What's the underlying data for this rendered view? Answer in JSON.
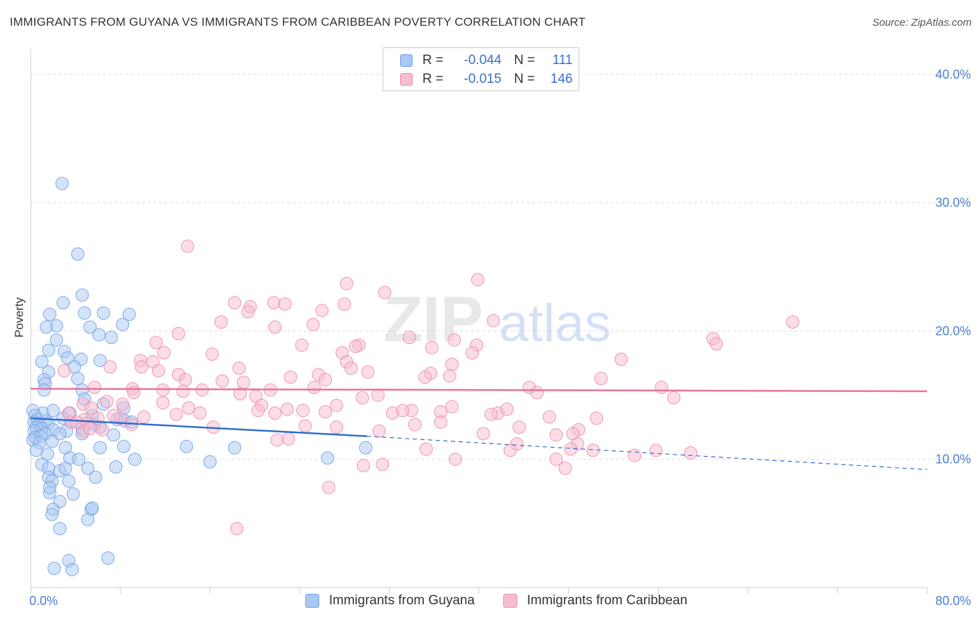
{
  "header": {
    "title": "IMMIGRANTS FROM GUYANA VS IMMIGRANTS FROM CARIBBEAN POVERTY CORRELATION CHART",
    "source": "Source: ZipAtlas.com"
  },
  "colors": {
    "guyana": "#6fa2e8",
    "guyana_fill": "#a9c8f2",
    "guyana_line": "#2f6fcc",
    "caribbean": "#ef8cab",
    "caribbean_fill": "#f6bccf",
    "caribbean_line": "#e8739b",
    "tick_text": "#4a7fd4"
  },
  "legend": {
    "r_label": "R =",
    "n_label": "N =",
    "rows": [
      {
        "r": "-0.044",
        "n": "111"
      },
      {
        "r": "-0.015",
        "n": "146"
      }
    ]
  },
  "watermark": {
    "part1": "ZIP",
    "part2": "atlas"
  },
  "chart_data": {
    "type": "scatter",
    "xlabel": "",
    "ylabel": "Poverty",
    "xlim": [
      0,
      80
    ],
    "ylim": [
      0,
      42
    ],
    "x_tick_labels": [
      "0.0%",
      "80.0%"
    ],
    "y_ticks": [
      10,
      20,
      30,
      40
    ],
    "y_tick_labels": [
      "10.0%",
      "20.0%",
      "30.0%",
      "40.0%"
    ],
    "grid": true,
    "legend_position": "top-center",
    "series": [
      {
        "name": "Immigrants from Guyana",
        "trend": {
          "x0": 0,
          "y0": 13.2,
          "x1": 30,
          "y1": 11.8,
          "x_end": 80,
          "y_end": 9.2
        },
        "points": [
          [
            2.8,
            31.5
          ],
          [
            4.2,
            26.0
          ],
          [
            4.6,
            22.8
          ],
          [
            2.9,
            22.2
          ],
          [
            4.8,
            21.4
          ],
          [
            6.5,
            21.4
          ],
          [
            8.8,
            21.3
          ],
          [
            1.7,
            21.3
          ],
          [
            2.3,
            20.4
          ],
          [
            1.4,
            20.3
          ],
          [
            5.3,
            20.3
          ],
          [
            8.2,
            20.5
          ],
          [
            6.1,
            19.7
          ],
          [
            7.2,
            19.5
          ],
          [
            2.3,
            19.3
          ],
          [
            1.6,
            18.5
          ],
          [
            3.0,
            18.4
          ],
          [
            3.3,
            17.9
          ],
          [
            4.5,
            17.8
          ],
          [
            6.2,
            17.7
          ],
          [
            1.0,
            17.6
          ],
          [
            3.9,
            17.2
          ],
          [
            1.6,
            16.8
          ],
          [
            1.2,
            16.2
          ],
          [
            1.3,
            15.9
          ],
          [
            4.2,
            16.3
          ],
          [
            1.2,
            15.4
          ],
          [
            4.6,
            15.4
          ],
          [
            4.8,
            14.7
          ],
          [
            6.5,
            14.3
          ],
          [
            8.3,
            14.0
          ],
          [
            0.2,
            13.8
          ],
          [
            1.1,
            13.6
          ],
          [
            2.0,
            13.8
          ],
          [
            3.5,
            13.6
          ],
          [
            5.5,
            13.4
          ],
          [
            0.4,
            13.4
          ],
          [
            0.6,
            13.1
          ],
          [
            1.4,
            13.0
          ],
          [
            2.9,
            13.2
          ],
          [
            8.4,
            13.0
          ],
          [
            7.7,
            13.1
          ],
          [
            0.3,
            12.9
          ],
          [
            0.8,
            12.7
          ],
          [
            1.6,
            12.8
          ],
          [
            3.6,
            12.9
          ],
          [
            5.7,
            12.7
          ],
          [
            9.0,
            12.9
          ],
          [
            0.5,
            12.5
          ],
          [
            1.0,
            12.4
          ],
          [
            2.0,
            12.3
          ],
          [
            3.2,
            12.2
          ],
          [
            4.6,
            12.4
          ],
          [
            6.2,
            12.5
          ],
          [
            0.3,
            12.2
          ],
          [
            1.3,
            12.0
          ],
          [
            2.6,
            12.0
          ],
          [
            4.6,
            12.0
          ],
          [
            0.4,
            11.7
          ],
          [
            0.9,
            11.8
          ],
          [
            1.9,
            11.4
          ],
          [
            7.4,
            11.9
          ],
          [
            0.2,
            11.5
          ],
          [
            0.8,
            11.3
          ],
          [
            3.1,
            10.9
          ],
          [
            6.2,
            10.9
          ],
          [
            8.3,
            11.0
          ],
          [
            13.9,
            11.0
          ],
          [
            18.2,
            10.9
          ],
          [
            29.9,
            10.9
          ],
          [
            0.5,
            10.7
          ],
          [
            1.5,
            10.4
          ],
          [
            3.5,
            10.1
          ],
          [
            4.3,
            10.0
          ],
          [
            9.3,
            10.0
          ],
          [
            16.0,
            9.8
          ],
          [
            26.5,
            10.1
          ],
          [
            1.0,
            9.6
          ],
          [
            1.6,
            9.3
          ],
          [
            2.6,
            9.1
          ],
          [
            3.1,
            9.3
          ],
          [
            5.1,
            9.3
          ],
          [
            7.6,
            9.4
          ],
          [
            1.6,
            8.6
          ],
          [
            5.8,
            8.6
          ],
          [
            1.9,
            8.3
          ],
          [
            3.4,
            8.3
          ],
          [
            1.7,
            7.4
          ],
          [
            3.8,
            7.3
          ],
          [
            1.7,
            7.8
          ],
          [
            2.6,
            6.7
          ],
          [
            2.0,
            6.1
          ],
          [
            5.4,
            6.1
          ],
          [
            5.5,
            6.2
          ],
          [
            1.9,
            5.7
          ],
          [
            5.1,
            5.3
          ],
          [
            2.6,
            4.6
          ],
          [
            3.4,
            2.1
          ],
          [
            6.9,
            2.3
          ],
          [
            2.1,
            1.5
          ],
          [
            3.7,
            1.4
          ]
        ]
      },
      {
        "name": "Immigrants from Caribbean",
        "trend": {
          "x0": 0,
          "y0": 15.5,
          "x1": 80,
          "y1": 15.3
        },
        "points": [
          [
            14.0,
            26.6
          ],
          [
            39.9,
            24.0
          ],
          [
            28.2,
            23.7
          ],
          [
            31.6,
            23.0
          ],
          [
            18.2,
            22.2
          ],
          [
            21.7,
            22.2
          ],
          [
            22.7,
            22.1
          ],
          [
            28.0,
            22.1
          ],
          [
            19.6,
            21.9
          ],
          [
            26.0,
            21.6
          ],
          [
            19.4,
            21.5
          ],
          [
            41.3,
            20.8
          ],
          [
            17.0,
            20.7
          ],
          [
            25.2,
            20.5
          ],
          [
            21.8,
            20.3
          ],
          [
            68.0,
            20.7
          ],
          [
            13.2,
            19.8
          ],
          [
            33.8,
            19.5
          ],
          [
            37.8,
            19.3
          ],
          [
            11.2,
            19.1
          ],
          [
            60.9,
            19.4
          ],
          [
            24.2,
            18.9
          ],
          [
            29.3,
            18.9
          ],
          [
            29.0,
            18.8
          ],
          [
            35.8,
            18.7
          ],
          [
            39.8,
            18.9
          ],
          [
            61.2,
            19.0
          ],
          [
            11.9,
            18.3
          ],
          [
            16.2,
            18.2
          ],
          [
            27.8,
            18.3
          ],
          [
            39.4,
            18.3
          ],
          [
            9.8,
            17.7
          ],
          [
            10.9,
            17.6
          ],
          [
            28.2,
            17.6
          ],
          [
            37.6,
            17.4
          ],
          [
            52.7,
            17.8
          ],
          [
            7.1,
            17.2
          ],
          [
            9.9,
            17.2
          ],
          [
            18.6,
            17.1
          ],
          [
            28.6,
            17.1
          ],
          [
            30.1,
            16.8
          ],
          [
            11.4,
            16.9
          ],
          [
            3.0,
            16.9
          ],
          [
            13.2,
            16.6
          ],
          [
            25.7,
            16.6
          ],
          [
            35.7,
            16.7
          ],
          [
            35.2,
            16.4
          ],
          [
            23.2,
            16.4
          ],
          [
            37.4,
            16.5
          ],
          [
            50.9,
            16.3
          ],
          [
            13.8,
            16.2
          ],
          [
            17.1,
            16.1
          ],
          [
            19.0,
            16.0
          ],
          [
            26.3,
            16.2
          ],
          [
            5.7,
            15.6
          ],
          [
            9.1,
            15.5
          ],
          [
            11.8,
            15.4
          ],
          [
            13.6,
            15.3
          ],
          [
            15.3,
            15.4
          ],
          [
            18.7,
            15.1
          ],
          [
            21.4,
            15.4
          ],
          [
            25.3,
            15.6
          ],
          [
            44.5,
            15.6
          ],
          [
            56.3,
            15.6
          ],
          [
            9.2,
            15.2
          ],
          [
            20.1,
            14.9
          ],
          [
            29.6,
            14.8
          ],
          [
            31.0,
            15.0
          ],
          [
            45.2,
            15.2
          ],
          [
            57.4,
            14.8
          ],
          [
            4.7,
            14.3
          ],
          [
            6.8,
            14.5
          ],
          [
            8.2,
            14.3
          ],
          [
            11.8,
            14.4
          ],
          [
            14.1,
            14.0
          ],
          [
            20.6,
            14.2
          ],
          [
            5.4,
            14.0
          ],
          [
            22.9,
            13.9
          ],
          [
            26.3,
            13.7
          ],
          [
            34.0,
            13.8
          ],
          [
            37.6,
            14.1
          ],
          [
            41.7,
            13.6
          ],
          [
            42.5,
            13.9
          ],
          [
            4.8,
            13.1
          ],
          [
            6.0,
            13.2
          ],
          [
            8.0,
            13.2
          ],
          [
            10.1,
            13.3
          ],
          [
            13.0,
            13.5
          ],
          [
            15.1,
            13.6
          ],
          [
            20.3,
            13.8
          ],
          [
            21.8,
            13.6
          ],
          [
            24.3,
            13.8
          ],
          [
            27.3,
            14.2
          ],
          [
            32.3,
            13.6
          ],
          [
            33.2,
            13.8
          ],
          [
            36.6,
            13.7
          ],
          [
            41.1,
            13.5
          ],
          [
            46.3,
            13.3
          ],
          [
            50.5,
            13.2
          ],
          [
            3.6,
            12.9
          ],
          [
            5.0,
            12.8
          ],
          [
            9.0,
            12.7
          ],
          [
            16.3,
            12.5
          ],
          [
            24.5,
            12.6
          ],
          [
            27.3,
            12.5
          ],
          [
            34.3,
            12.7
          ],
          [
            36.6,
            12.9
          ],
          [
            43.6,
            12.5
          ],
          [
            4.7,
            12.2
          ],
          [
            6.4,
            12.3
          ],
          [
            31.1,
            12.2
          ],
          [
            40.4,
            12.0
          ],
          [
            46.9,
            11.9
          ],
          [
            48.9,
            12.3
          ],
          [
            48.4,
            12.0
          ],
          [
            22.0,
            11.5
          ],
          [
            23.0,
            11.6
          ],
          [
            43.4,
            11.2
          ],
          [
            48.8,
            11.2
          ],
          [
            35.3,
            10.8
          ],
          [
            42.8,
            10.7
          ],
          [
            48.2,
            10.8
          ],
          [
            50.2,
            10.7
          ],
          [
            55.8,
            10.7
          ],
          [
            58.9,
            10.5
          ],
          [
            53.9,
            10.3
          ],
          [
            37.9,
            10.0
          ],
          [
            46.9,
            10.0
          ],
          [
            29.7,
            9.5
          ],
          [
            31.4,
            9.6
          ],
          [
            47.7,
            9.3
          ],
          [
            26.6,
            7.8
          ],
          [
            18.4,
            4.6
          ],
          [
            5.3,
            12.4
          ],
          [
            4.1,
            12.9
          ],
          [
            7.4,
            13.4
          ],
          [
            3.4,
            13.6
          ]
        ]
      }
    ]
  },
  "bottom_legend": {
    "guyana_label": "Immigrants from Guyana",
    "caribbean_label": "Immigrants from Caribbean"
  }
}
